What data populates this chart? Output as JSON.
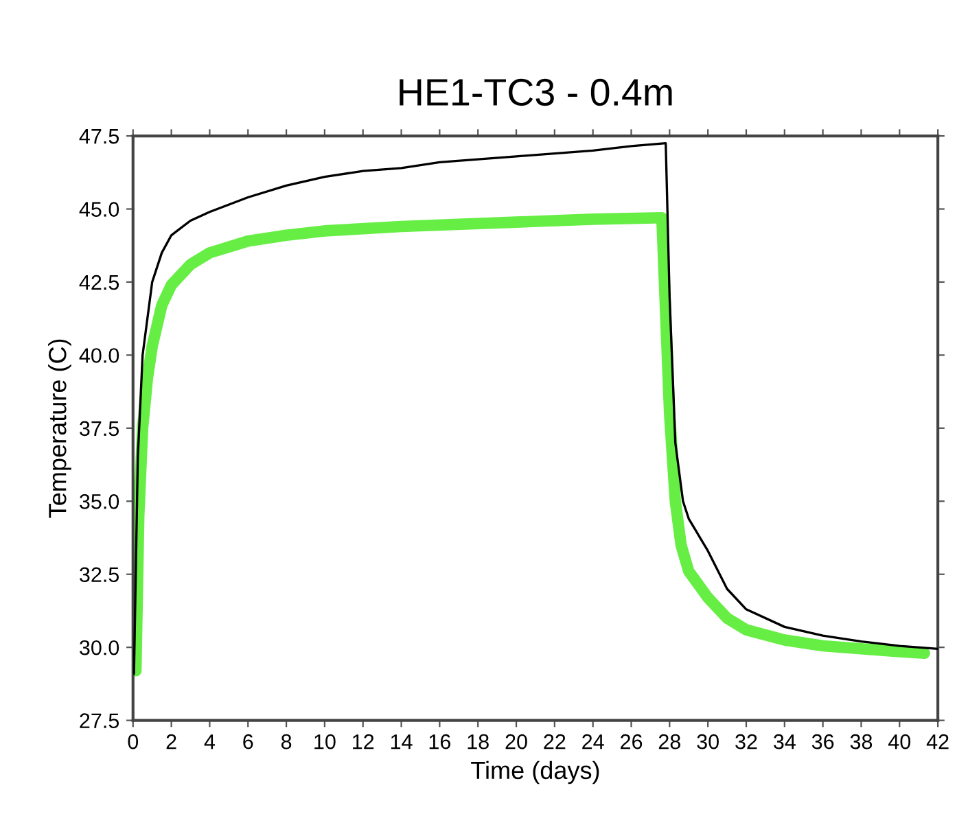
{
  "chart_data": {
    "type": "line",
    "title": "HE1-TC3 - 0.4m",
    "xlabel": "Time (days)",
    "ylabel": "Temperature (C)",
    "xlim": [
      0,
      42
    ],
    "xticks": [
      0,
      2,
      4,
      6,
      8,
      10,
      12,
      14,
      16,
      18,
      20,
      22,
      24,
      26,
      28,
      30,
      32,
      34,
      36,
      38,
      40,
      42
    ],
    "ylim": [
      27.5,
      47.5
    ],
    "yticks": [
      {
        "value": 27.5,
        "label": "27.5"
      },
      {
        "value": 30,
        "label": "30.0"
      },
      {
        "value": 32.5,
        "label": "32.5"
      },
      {
        "value": 35,
        "label": "35.0"
      },
      {
        "value": 37.5,
        "label": "37.5"
      },
      {
        "value": 40,
        "label": "40.0"
      },
      {
        "value": 42.5,
        "label": "42.5"
      },
      {
        "value": 45,
        "label": "45.0"
      },
      {
        "value": 47.5,
        "label": "47.5"
      }
    ],
    "grid": false,
    "legend": false,
    "marker": "none",
    "line_style": "solid",
    "series": [
      {
        "color": "#66ee44",
        "x": [
          0.15,
          0.3,
          0.5,
          0.75,
          1,
          1.5,
          2,
          3,
          4,
          6,
          8,
          10,
          14,
          20,
          24,
          27.6,
          28.0,
          28.3,
          28.6,
          29,
          30,
          31,
          32,
          34,
          36,
          38,
          40,
          41.3
        ],
        "values": [
          29.2,
          34.5,
          37.5,
          39.2,
          40.3,
          41.7,
          42.4,
          43.1,
          43.5,
          43.9,
          44.1,
          44.25,
          44.4,
          44.55,
          44.65,
          44.7,
          38,
          35,
          33.5,
          32.6,
          31.7,
          31.0,
          30.6,
          30.25,
          30.05,
          29.95,
          29.85,
          29.8
        ]
      },
      {
        "color": "#000000",
        "x": [
          0.05,
          0.25,
          0.5,
          1,
          1.5,
          2,
          3,
          4,
          6,
          8,
          10,
          12,
          14,
          16,
          20,
          24,
          26,
          27.8,
          28.0,
          28.3,
          28.7,
          29,
          30,
          31,
          32,
          34,
          36,
          38,
          40,
          42
        ],
        "values": [
          29.1,
          36.5,
          40.0,
          42.5,
          43.5,
          44.1,
          44.6,
          44.9,
          45.4,
          45.8,
          46.1,
          46.3,
          46.4,
          46.6,
          46.8,
          47.0,
          47.15,
          47.25,
          42,
          37,
          35,
          34.4,
          33.3,
          32.0,
          31.3,
          30.7,
          30.4,
          30.2,
          30.05,
          29.95
        ]
      }
    ]
  }
}
